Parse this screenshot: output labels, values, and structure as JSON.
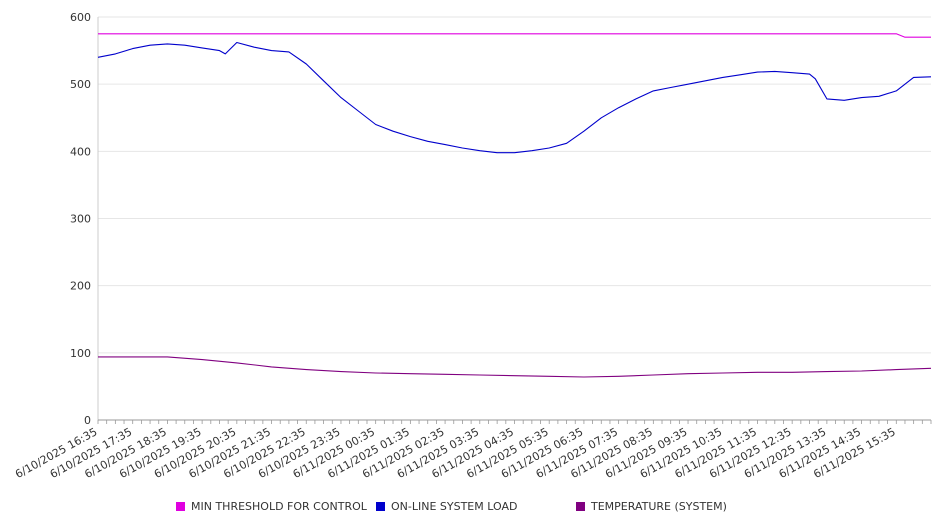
{
  "chart_data": {
    "type": "line",
    "title": "",
    "xlabel": "",
    "ylabel": "",
    "ylim": [
      0,
      600
    ],
    "yticks": [
      0,
      100,
      200,
      300,
      400,
      500,
      600
    ],
    "grid": true,
    "legend_position": "bottom",
    "x_tick_labels": [
      "6/10/2025 16:35",
      "6/10/2025 17:35",
      "6/10/2025 18:35",
      "6/10/2025 19:35",
      "6/10/2025 20:35",
      "6/10/2025 21:35",
      "6/10/2025 22:35",
      "6/10/2025 23:35",
      "6/11/2025 00:35",
      "6/11/2025 01:35",
      "6/11/2025 02:35",
      "6/11/2025 03:35",
      "6/11/2025 04:35",
      "6/11/2025 05:35",
      "6/11/2025 06:35",
      "6/11/2025 07:35",
      "6/11/2025 08:35",
      "6/11/2025 09:35",
      "6/11/2025 10:35",
      "6/11/2025 11:35",
      "6/11/2025 12:35",
      "6/11/2025 13:35",
      "6/11/2025 14:35",
      "6/11/2025 15:35"
    ],
    "series": [
      {
        "name": "MIN THRESHOLD FOR CONTROL",
        "color": "#e000e0",
        "x": [
          "6/10/2025 16:35",
          "6/11/2025 15:35",
          "6/11/2025 15:50",
          "6/11/2025 16:35"
        ],
        "values": [
          575,
          575,
          570,
          570
        ]
      },
      {
        "name": "ON-LINE SYSTEM LOAD",
        "color": "#0000cc",
        "x": [
          "6/10/2025 16:35",
          "6/10/2025 17:05",
          "6/10/2025 17:35",
          "6/10/2025 18:05",
          "6/10/2025 18:35",
          "6/10/2025 19:05",
          "6/10/2025 19:35",
          "6/10/2025 20:05",
          "6/10/2025 20:15",
          "6/10/2025 20:35",
          "6/10/2025 21:05",
          "6/10/2025 21:35",
          "6/10/2025 22:05",
          "6/10/2025 22:35",
          "6/10/2025 23:05",
          "6/10/2025 23:35",
          "6/11/2025 00:05",
          "6/11/2025 00:35",
          "6/11/2025 01:05",
          "6/11/2025 01:35",
          "6/11/2025 02:05",
          "6/11/2025 02:35",
          "6/11/2025 03:05",
          "6/11/2025 03:35",
          "6/11/2025 04:05",
          "6/11/2025 04:35",
          "6/11/2025 05:05",
          "6/11/2025 05:35",
          "6/11/2025 06:05",
          "6/11/2025 06:35",
          "6/11/2025 07:05",
          "6/11/2025 07:35",
          "6/11/2025 08:05",
          "6/11/2025 08:35",
          "6/11/2025 09:05",
          "6/11/2025 09:35",
          "6/11/2025 10:05",
          "6/11/2025 10:35",
          "6/11/2025 11:05",
          "6/11/2025 11:35",
          "6/11/2025 12:05",
          "6/11/2025 12:35",
          "6/11/2025 13:05",
          "6/11/2025 13:15",
          "6/11/2025 13:35",
          "6/11/2025 14:05",
          "6/11/2025 14:35",
          "6/11/2025 15:05",
          "6/11/2025 15:35",
          "6/11/2025 16:05",
          "6/11/2025 16:35"
        ],
        "values": [
          540,
          545,
          553,
          558,
          560,
          558,
          554,
          550,
          545,
          562,
          555,
          550,
          548,
          530,
          505,
          480,
          460,
          440,
          430,
          422,
          415,
          410,
          405,
          401,
          398,
          398,
          401,
          405,
          412,
          430,
          450,
          465,
          478,
          490,
          495,
          500,
          505,
          510,
          514,
          518,
          519,
          517,
          515,
          508,
          478,
          476,
          480,
          482,
          490,
          510,
          511
        ]
      },
      {
        "name": "TEMPERATURE (SYSTEM)",
        "color": "#800080",
        "x": [
          "6/10/2025 16:35",
          "6/10/2025 17:35",
          "6/10/2025 18:35",
          "6/10/2025 19:35",
          "6/10/2025 20:35",
          "6/10/2025 21:35",
          "6/10/2025 22:35",
          "6/10/2025 23:35",
          "6/11/2025 00:35",
          "6/11/2025 01:35",
          "6/11/2025 02:35",
          "6/11/2025 03:35",
          "6/11/2025 04:35",
          "6/11/2025 05:35",
          "6/11/2025 06:35",
          "6/11/2025 07:35",
          "6/11/2025 08:35",
          "6/11/2025 09:35",
          "6/11/2025 10:35",
          "6/11/2025 11:35",
          "6/11/2025 12:35",
          "6/11/2025 13:35",
          "6/11/2025 14:35",
          "6/11/2025 15:35",
          "6/11/2025 16:35"
        ],
        "values": [
          94,
          94,
          94,
          90,
          85,
          79,
          75,
          72,
          70,
          69,
          68,
          67,
          66,
          65,
          64,
          65,
          67,
          69,
          70,
          71,
          71,
          72,
          73,
          75,
          77
        ]
      }
    ]
  }
}
